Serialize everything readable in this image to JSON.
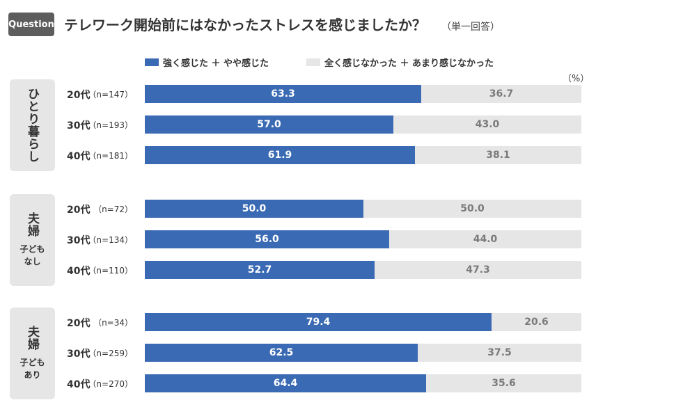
{
  "question_badge": "Question",
  "question_text": "テレワーク開始前にはなかったストレスを感じましたか？",
  "answer_type": "（単一回答）",
  "unit_label": "（%）",
  "colors": {
    "agree": "#3a6ab3",
    "disagree": "#e6e6e6"
  },
  "chart_data": {
    "type": "bar",
    "orientation": "horizontal",
    "stacked": true,
    "title": "テレワーク開始前にはなかったストレスを感じましたか？",
    "unit": "%",
    "legend": [
      "強く感じた ＋ やや感じた",
      "全く感じなかった ＋ あまり感じなかった"
    ],
    "groups": [
      {
        "main": "ひとり暮らし",
        "sub": [],
        "rows": [
          {
            "age": "20代",
            "n": "（n=147）",
            "agree": 63.3,
            "disagree": 36.7,
            "agree_label": "63.3",
            "disagree_label": "36.7"
          },
          {
            "age": "30代",
            "n": "（n=193）",
            "agree": 57.0,
            "disagree": 43.0,
            "agree_label": "57.0",
            "disagree_label": "43.0"
          },
          {
            "age": "40代",
            "n": "（n=181）",
            "agree": 61.9,
            "disagree": 38.1,
            "agree_label": "61.9",
            "disagree_label": "38.1"
          }
        ]
      },
      {
        "main": "夫婦",
        "sub": [
          "子ども",
          "なし"
        ],
        "rows": [
          {
            "age": "20代",
            "n": "（n=72）",
            "agree": 50.0,
            "disagree": 50.0,
            "agree_label": "50.0",
            "disagree_label": "50.0"
          },
          {
            "age": "30代",
            "n": "（n=134）",
            "agree": 56.0,
            "disagree": 44.0,
            "agree_label": "56.0",
            "disagree_label": "44.0"
          },
          {
            "age": "40代",
            "n": "（n=110）",
            "agree": 52.7,
            "disagree": 47.3,
            "agree_label": "52.7",
            "disagree_label": "47.3"
          }
        ]
      },
      {
        "main": "夫婦",
        "sub": [
          "子ども",
          "あり"
        ],
        "rows": [
          {
            "age": "20代",
            "n": "（n=34）",
            "agree": 79.4,
            "disagree": 20.6,
            "agree_label": "79.4",
            "disagree_label": "20.6"
          },
          {
            "age": "30代",
            "n": "（n=259）",
            "agree": 62.5,
            "disagree": 37.5,
            "agree_label": "62.5",
            "disagree_label": "37.5"
          },
          {
            "age": "40代",
            "n": "（n=270）",
            "agree": 64.4,
            "disagree": 35.6,
            "agree_label": "64.4",
            "disagree_label": "35.6"
          }
        ]
      }
    ]
  }
}
